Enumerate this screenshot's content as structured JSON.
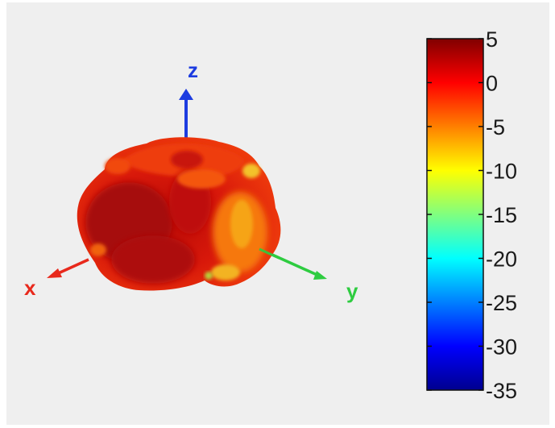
{
  "chart_data": {
    "type": "3d-radiation-pattern",
    "axes": [
      {
        "name": "x",
        "color": "#e8291c"
      },
      {
        "name": "y",
        "color": "#2ecc40"
      },
      {
        "name": "z",
        "color": "#1d3ce0"
      }
    ],
    "colorbar": {
      "min": -35,
      "max": 5,
      "colormap": "jet",
      "ticks": [
        5,
        0,
        -5,
        -10,
        -15,
        -20,
        -25,
        -30,
        -35
      ],
      "tick_labels": [
        "5",
        "0",
        "-5",
        "-10",
        "-15",
        "-20",
        "-25",
        "-30",
        "-35"
      ]
    },
    "surface_colors": {
      "dark": "#a80707",
      "main": "#e41d0b",
      "light": "#f24a0a",
      "orange": "#f6800e",
      "yellow": "#f5c522",
      "green": "#b6d43a"
    }
  }
}
